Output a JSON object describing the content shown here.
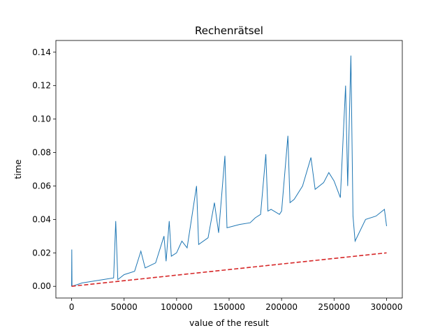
{
  "chart_data": {
    "type": "line",
    "title": "Rechenrätsel",
    "xlabel": "value of the result",
    "ylabel": "time",
    "xlim": [
      -15000,
      315000
    ],
    "ylim": [
      -0.007,
      0.147
    ],
    "x_ticks": [
      0,
      50000,
      100000,
      150000,
      200000,
      250000,
      300000
    ],
    "x_tick_labels": [
      "0",
      "50000",
      "100000",
      "150000",
      "200000",
      "250000",
      "300000"
    ],
    "y_ticks": [
      0.0,
      0.02,
      0.04,
      0.06,
      0.08,
      0.1,
      0.12,
      0.14
    ],
    "y_tick_labels": [
      "0.00",
      "0.02",
      "0.04",
      "0.06",
      "0.08",
      "0.10",
      "0.12",
      "0.14"
    ],
    "grid": false,
    "legend": "none",
    "series": [
      {
        "style": "solid",
        "color": "#1f77b4",
        "points": [
          [
            0,
            0.0
          ],
          [
            200,
            0.022
          ],
          [
            400,
            0.0
          ],
          [
            10000,
            0.002
          ],
          [
            20000,
            0.003
          ],
          [
            30000,
            0.004
          ],
          [
            40000,
            0.005
          ],
          [
            42000,
            0.039
          ],
          [
            44000,
            0.004
          ],
          [
            50000,
            0.007
          ],
          [
            60000,
            0.009
          ],
          [
            66000,
            0.021
          ],
          [
            70000,
            0.011
          ],
          [
            80000,
            0.014
          ],
          [
            88000,
            0.03
          ],
          [
            90000,
            0.015
          ],
          [
            93000,
            0.039
          ],
          [
            95000,
            0.018
          ],
          [
            100000,
            0.02
          ],
          [
            105000,
            0.027
          ],
          [
            110000,
            0.023
          ],
          [
            119000,
            0.06
          ],
          [
            121000,
            0.025
          ],
          [
            130000,
            0.029
          ],
          [
            136000,
            0.05
          ],
          [
            140000,
            0.032
          ],
          [
            146000,
            0.078
          ],
          [
            148000,
            0.035
          ],
          [
            160000,
            0.037
          ],
          [
            170000,
            0.038
          ],
          [
            175000,
            0.041
          ],
          [
            180000,
            0.043
          ],
          [
            185000,
            0.079
          ],
          [
            187000,
            0.045
          ],
          [
            190000,
            0.046
          ],
          [
            198000,
            0.043
          ],
          [
            200000,
            0.045
          ],
          [
            206000,
            0.09
          ],
          [
            208000,
            0.05
          ],
          [
            212000,
            0.052
          ],
          [
            220000,
            0.06
          ],
          [
            228000,
            0.077
          ],
          [
            232000,
            0.058
          ],
          [
            240000,
            0.062
          ],
          [
            245000,
            0.068
          ],
          [
            250000,
            0.063
          ],
          [
            256000,
            0.053
          ],
          [
            261000,
            0.12
          ],
          [
            263000,
            0.06
          ],
          [
            266000,
            0.138
          ],
          [
            268000,
            0.042
          ],
          [
            270000,
            0.027
          ],
          [
            280000,
            0.04
          ],
          [
            290000,
            0.042
          ],
          [
            298000,
            0.046
          ],
          [
            300000,
            0.036
          ]
        ]
      },
      {
        "style": "dashed",
        "color": "#d62728",
        "points": [
          [
            0,
            0.0
          ],
          [
            300000,
            0.02
          ]
        ]
      }
    ]
  }
}
